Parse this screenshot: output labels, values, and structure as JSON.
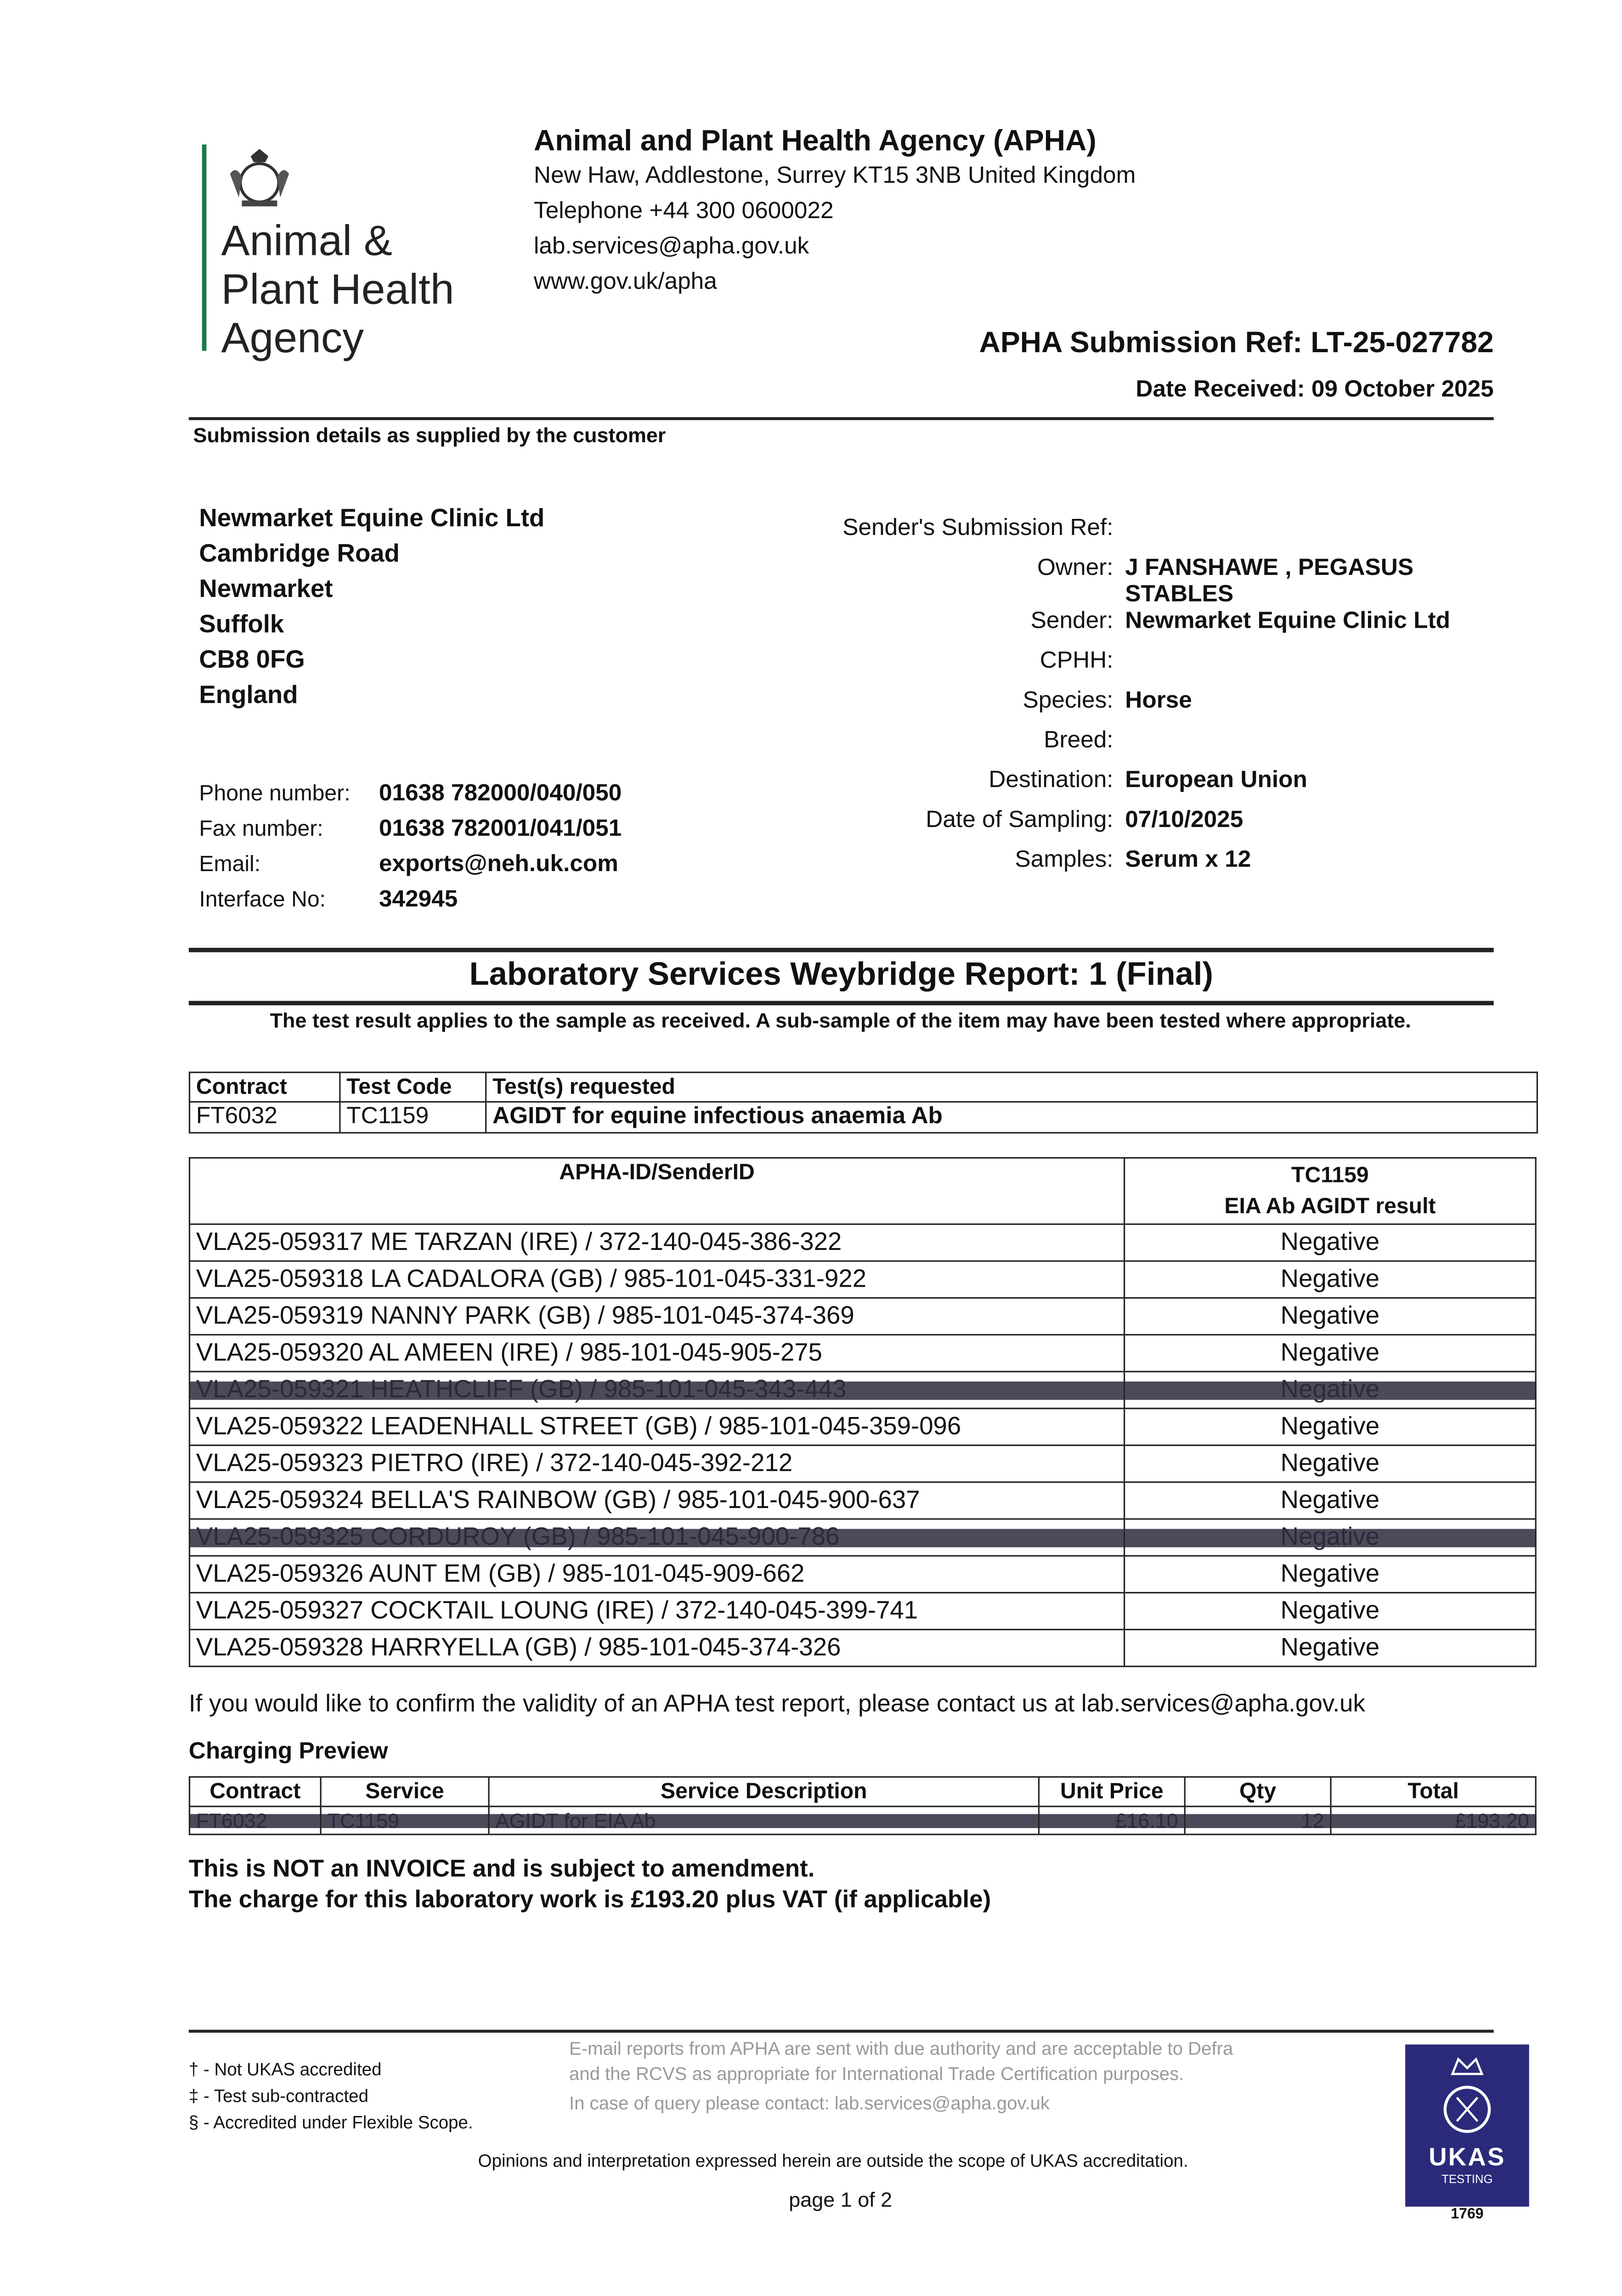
{
  "logo": {
    "lines": [
      "Animal &",
      "Plant Health",
      "Agency"
    ],
    "accent": "#1a7a4a"
  },
  "header": {
    "title": "Animal and Plant Health Agency (APHA)",
    "address": "New Haw, Addlestone, Surrey KT15 3NB United Kingdom",
    "telephone": "Telephone +44 300 0600022",
    "email": "lab.services@apha.gov.uk",
    "web": "www.gov.uk/apha"
  },
  "submission_ref": "APHA Submission Ref: LT-25-027782",
  "date_received": "Date Received: 09 October 2025",
  "section_label": "Submission details as supplied by the customer",
  "customer": {
    "address": [
      "Newmarket Equine Clinic Ltd",
      "Cambridge Road",
      "Newmarket",
      "Suffolk",
      "CB8 0FG",
      "England"
    ],
    "contacts": [
      {
        "label": "Phone number:",
        "value": "01638 782000/040/050"
      },
      {
        "label": "Fax number:",
        "value": "01638 782001/041/051"
      },
      {
        "label": "Email:",
        "value": "exports@neh.uk.com"
      },
      {
        "label": "Interface No:",
        "value": "342945"
      }
    ]
  },
  "details": [
    {
      "label": "Sender's Submission Ref:",
      "value": ""
    },
    {
      "label": "Owner:",
      "value": "J FANSHAWE , PEGASUS STABLES"
    },
    {
      "label": "Sender:",
      "value": "Newmarket Equine Clinic Ltd"
    },
    {
      "label": "CPHH:",
      "value": ""
    },
    {
      "label": "Species:",
      "value": "Horse"
    },
    {
      "label": "Breed:",
      "value": ""
    },
    {
      "label": "Destination:",
      "value": "European Union"
    },
    {
      "label": "Date of Sampling:",
      "value": "07/10/2025"
    },
    {
      "label": "Samples:",
      "value": "Serum x 12"
    }
  ],
  "report_title": "Laboratory Services Weybridge Report: 1 (Final)",
  "report_note": "The test result applies to the sample as received. A sub-sample of the item may have been tested where appropriate.",
  "tests_table": {
    "headers": [
      "Contract",
      "Test Code",
      "Test(s) requested"
    ],
    "row": [
      "FT6032",
      "TC1159",
      "AGIDT for equine infectious anaemia Ab"
    ]
  },
  "results_table": {
    "header_id": "APHA-ID/SenderID",
    "header_code": "TC1159",
    "header_result": "EIA Ab AGIDT result",
    "rows": [
      {
        "id": "VLA25-059317 ME TARZAN (IRE) / 372-140-045-386-322",
        "result": "Negative",
        "redacted": false
      },
      {
        "id": "VLA25-059318 LA CADALORA (GB) / 985-101-045-331-922",
        "result": "Negative",
        "redacted": false
      },
      {
        "id": "VLA25-059319 NANNY PARK (GB) / 985-101-045-374-369",
        "result": "Negative",
        "redacted": false
      },
      {
        "id": "VLA25-059320 AL AMEEN (IRE) / 985-101-045-905-275",
        "result": "Negative",
        "redacted": false
      },
      {
        "id": "VLA25-059321 HEATHCLIFF (GB) / 985-101-045-343-443",
        "result": "Negative",
        "redacted": true
      },
      {
        "id": "VLA25-059322 LEADENHALL STREET (GB) / 985-101-045-359-096",
        "result": "Negative",
        "redacted": false
      },
      {
        "id": "VLA25-059323 PIETRO (IRE) / 372-140-045-392-212",
        "result": "Negative",
        "redacted": false
      },
      {
        "id": "VLA25-059324 BELLA'S RAINBOW (GB) / 985-101-045-900-637",
        "result": "Negative",
        "redacted": false
      },
      {
        "id": "VLA25-059325 CORDUROY (GB) / 985-101-045-900-786",
        "result": "Negative",
        "redacted": true
      },
      {
        "id": "VLA25-059326 AUNT EM (GB) / 985-101-045-909-662",
        "result": "Negative",
        "redacted": false
      },
      {
        "id": "VLA25-059327 COCKTAIL LOUNG (IRE) / 372-140-045-399-741",
        "result": "Negative",
        "redacted": false
      },
      {
        "id": "VLA25-059328 HARRYELLA (GB) / 985-101-045-374-326",
        "result": "Negative",
        "redacted": false
      }
    ]
  },
  "validity_note": "If you would like to confirm the validity of an APHA test report, please contact us at lab.services@apha.gov.uk",
  "charging": {
    "title": "Charging Preview",
    "headers": [
      "Contract",
      "Service",
      "Service Description",
      "Unit Price",
      "Qty",
      "Total"
    ],
    "row": [
      "FT6032",
      "TC1159",
      "AGIDT for EIA Ab",
      "£16.10",
      "12",
      "£193.20"
    ]
  },
  "invoice_note": "This is NOT an INVOICE and is subject to amendment.",
  "charge_note": "The charge for this laboratory work is £193.20 plus VAT (if applicable)",
  "footnotes": [
    "† - Not UKAS accredited",
    "‡ - Test sub-contracted",
    "§ - Accredited under Flexible Scope."
  ],
  "email_note": [
    "E-mail reports from APHA are sent with due authority and are acceptable to Defra and the RCVS as appropriate for International Trade Certification purposes.",
    "In case of query please contact: lab.services@apha.gov.uk"
  ],
  "ukas_note": "Opinions and interpretation expressed herein are outside the scope of UKAS accreditation.",
  "page": "page 1 of 2",
  "ukas": {
    "name": "UKAS",
    "sub": "TESTING",
    "number": "1769",
    "color": "#2b2a7a"
  }
}
